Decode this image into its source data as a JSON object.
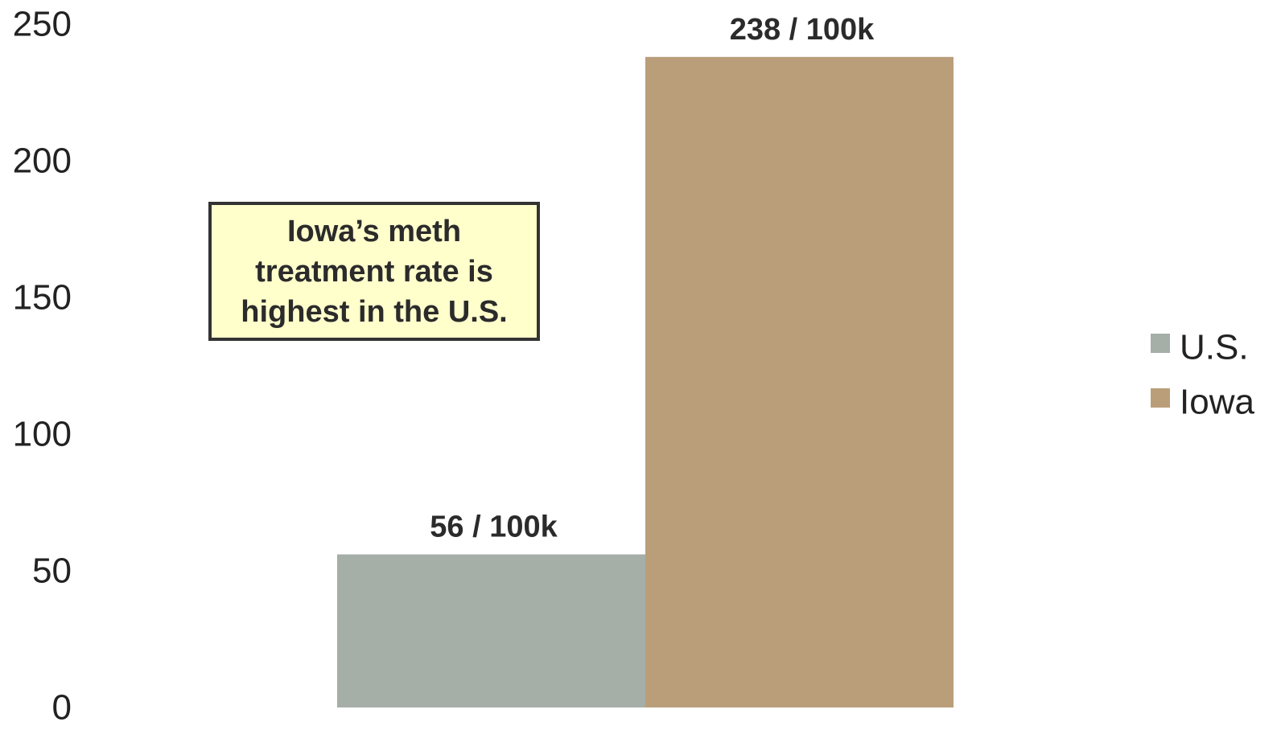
{
  "chart_data": {
    "type": "bar",
    "categories": [
      ""
    ],
    "series": [
      {
        "name": "U.S.",
        "values": [
          56
        ],
        "data_label": "56 / 100k",
        "color": "#a5aea7"
      },
      {
        "name": "Iowa",
        "values": [
          238
        ],
        "data_label": "238 / 100k",
        "color": "#ba9e7a"
      }
    ],
    "title": "",
    "xlabel": "",
    "ylabel": "",
    "ylim": [
      0,
      250
    ],
    "yticks": [
      0,
      50,
      100,
      150,
      200,
      250
    ],
    "grid": false,
    "legend_position": "right",
    "annotation": "Iowa’s meth\ntreatment rate is\nhighest in the U.S."
  }
}
